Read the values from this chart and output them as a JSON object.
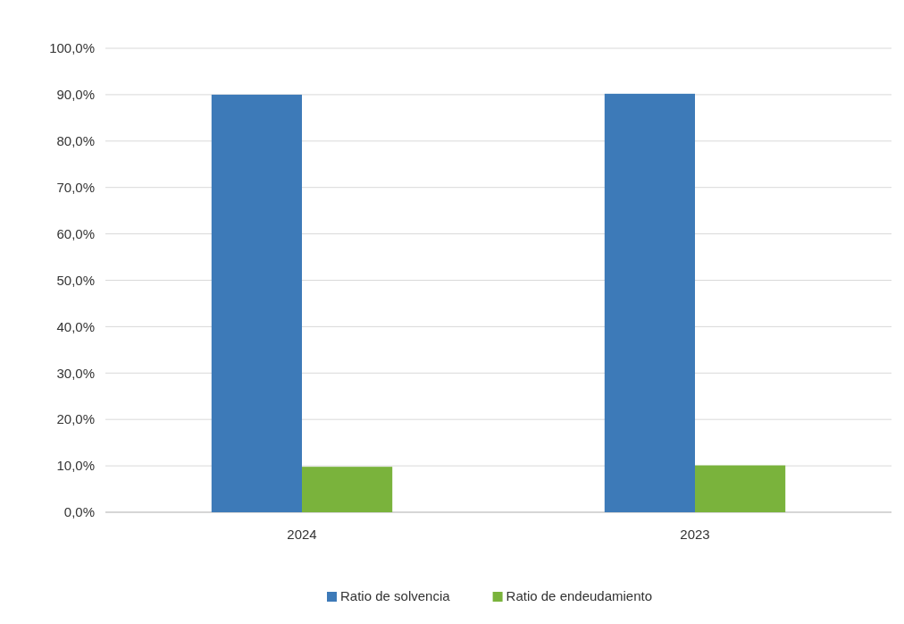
{
  "chart_data": {
    "type": "bar",
    "categories": [
      "2024",
      "2023"
    ],
    "series": [
      {
        "name": "Ratio de solvencia",
        "color": "#3d7ab8",
        "values": [
          90.0,
          90.2
        ]
      },
      {
        "name": "Ratio de endeudamiento",
        "color": "#7ab33c",
        "values": [
          9.8,
          10.1
        ]
      }
    ],
    "ylim": [
      0,
      100
    ],
    "yticks": [
      {
        "value": 0,
        "label": "0,0%"
      },
      {
        "value": 10,
        "label": "10,0%"
      },
      {
        "value": 20,
        "label": "20,0%"
      },
      {
        "value": 30,
        "label": "30,0%"
      },
      {
        "value": 40,
        "label": "40,0%"
      },
      {
        "value": 50,
        "label": "50,0%"
      },
      {
        "value": 60,
        "label": "60,0%"
      },
      {
        "value": 70,
        "label": "70,0%"
      },
      {
        "value": 80,
        "label": "80,0%"
      },
      {
        "value": 90,
        "label": "90,0%"
      },
      {
        "value": 100,
        "label": "100,0%"
      }
    ],
    "grid": "y",
    "legend": "bottom"
  }
}
